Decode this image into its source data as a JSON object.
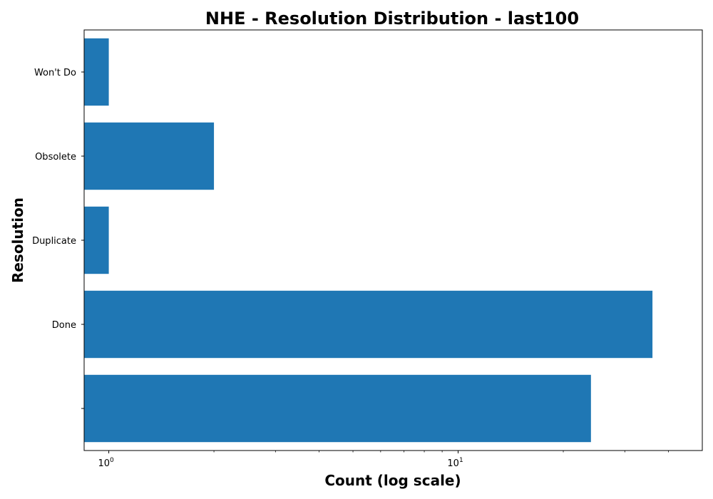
{
  "chart_data": {
    "type": "bar",
    "orientation": "horizontal",
    "title": "NHE - Resolution Distribution - last100",
    "xlabel": "Count (log scale)",
    "ylabel": "Resolution",
    "xscale": "log",
    "xlim": [
      0.85,
      50
    ],
    "categories": [
      "",
      "Done",
      "Duplicate",
      "Obsolete",
      "Won't Do"
    ],
    "values": [
      24,
      36,
      1,
      2,
      1
    ],
    "x_ticks": [
      {
        "base": "10",
        "exponent": "0",
        "value": 1
      },
      {
        "base": "10",
        "exponent": "1",
        "value": 10
      }
    ],
    "bar_color": "#1f77b4",
    "grid": false,
    "legend": "none"
  }
}
